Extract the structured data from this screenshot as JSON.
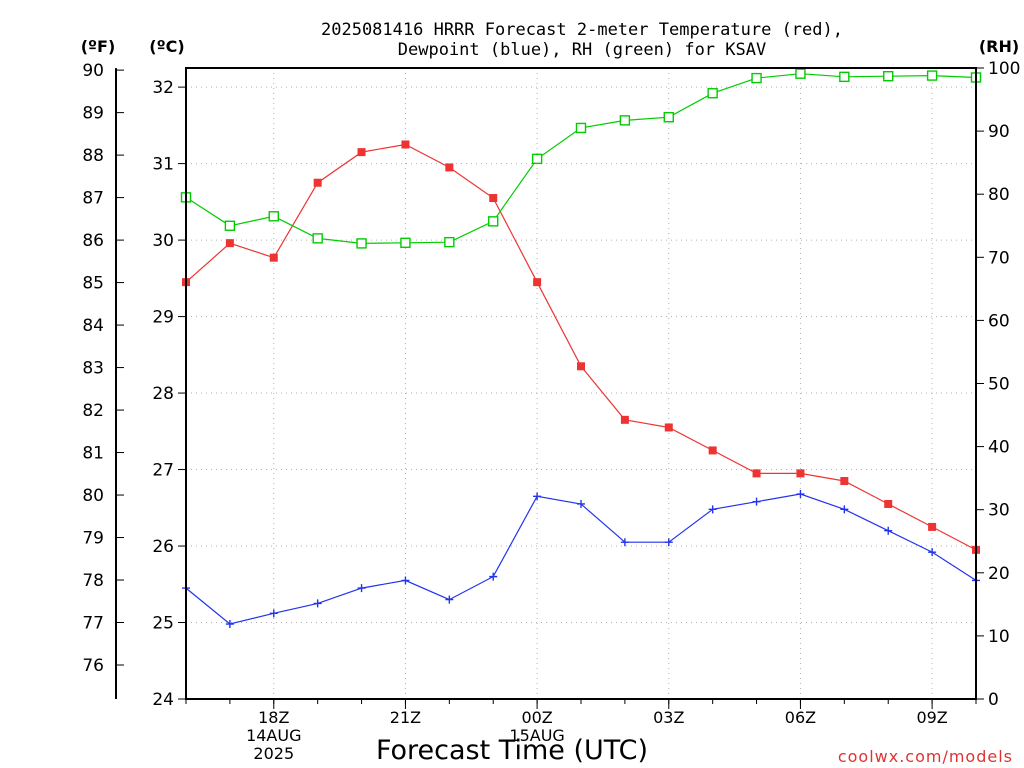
{
  "chart_data": {
    "type": "line",
    "title_line1": "2025081416 HRRR Forecast 2-meter Temperature (red),",
    "title_line2": "Dewpoint (blue), RH (green) for KSAV",
    "xlabel": "Forecast Time (UTC)",
    "watermark": "coolwx.com/models",
    "unit_labels": {
      "fahrenheit": "(ºF)",
      "celsius": "(ºC)",
      "rh": "(RH)"
    },
    "x_hours": [
      16,
      17,
      18,
      19,
      20,
      21,
      22,
      23,
      24,
      25,
      26,
      27,
      28,
      29,
      30,
      31,
      32,
      33,
      34
    ],
    "x_ticks": [
      {
        "hour": 18,
        "lines": [
          "18Z",
          "14AUG",
          "2025"
        ]
      },
      {
        "hour": 21,
        "lines": [
          "21Z"
        ]
      },
      {
        "hour": 24,
        "lines": [
          "00Z",
          "15AUG"
        ]
      },
      {
        "hour": 27,
        "lines": [
          "03Z"
        ]
      },
      {
        "hour": 30,
        "lines": [
          "06Z"
        ]
      },
      {
        "hour": 33,
        "lines": [
          "09Z"
        ]
      }
    ],
    "celsius_axis": {
      "range": [
        24,
        32.25
      ],
      "ticks": [
        24,
        25,
        26,
        27,
        28,
        29,
        30,
        31,
        32
      ]
    },
    "fahrenheit_axis": {
      "ticks": [
        76,
        77,
        78,
        79,
        80,
        81,
        82,
        83,
        84,
        85,
        86,
        87,
        88,
        89,
        90
      ]
    },
    "rh_axis": {
      "range": [
        0,
        100
      ],
      "ticks": [
        0,
        10,
        20,
        30,
        40,
        50,
        60,
        70,
        80,
        90,
        100
      ]
    },
    "series": [
      {
        "key": "temperature",
        "color": "#ee3333",
        "marker": "filled-square",
        "axis": "celsius",
        "values": [
          29.45,
          29.96,
          29.77,
          30.75,
          31.15,
          31.25,
          30.95,
          30.55,
          29.45,
          28.35,
          27.65,
          27.55,
          27.25,
          26.95,
          26.95,
          26.85,
          26.55,
          26.25,
          25.95
        ]
      },
      {
        "key": "dewpoint",
        "color": "#2233ee",
        "marker": "plus",
        "axis": "celsius",
        "values": [
          25.45,
          24.98,
          25.12,
          25.25,
          25.45,
          25.55,
          25.3,
          25.6,
          26.65,
          26.55,
          26.05,
          26.05,
          26.48,
          26.58,
          26.68,
          26.48,
          26.2,
          25.92,
          25.55
        ]
      },
      {
        "key": "rh",
        "color": "#00cc00",
        "marker": "open-square",
        "axis": "rh",
        "values": [
          79.5,
          75,
          76.5,
          73,
          72.2,
          72.3,
          72.4,
          75.7,
          85.6,
          90.5,
          91.7,
          92.2,
          96,
          98.4,
          99.1,
          98.6,
          98.7,
          98.8,
          98.5
        ]
      }
    ],
    "grid": true,
    "legend": "none"
  }
}
